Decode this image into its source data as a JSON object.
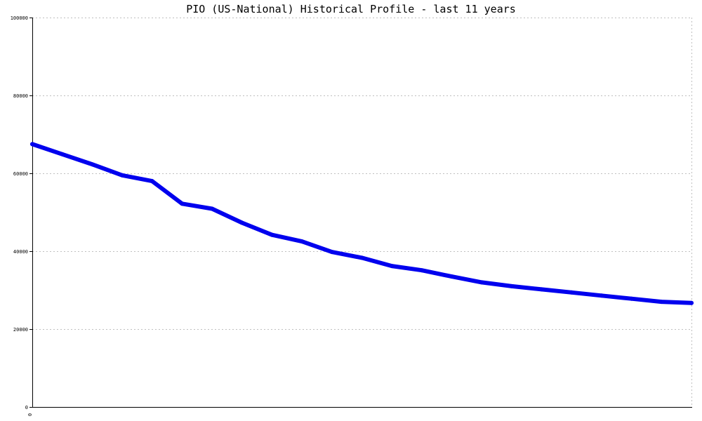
{
  "chart_data": {
    "type": "line",
    "title": "PIO (US-National) Historical Profile - last 11 years",
    "xlabel": "",
    "ylabel": "",
    "ylim": [
      0,
      100000
    ],
    "yticks": [
      0,
      20000,
      40000,
      60000,
      80000,
      100000
    ],
    "ytick_labels": [
      "0",
      "20000",
      "40000",
      "60000",
      "80000",
      "100000"
    ],
    "xtick_labels": [
      "0"
    ],
    "grid": true,
    "colors": {
      "series": "#0000ee",
      "grid": "#bfbfbf",
      "axis": "#000000"
    },
    "series": [
      {
        "x": [
          0,
          1,
          2,
          3,
          4,
          5,
          6,
          7,
          8,
          9,
          10,
          11,
          12,
          13,
          14,
          15,
          16,
          17,
          18,
          19,
          20,
          21,
          22
        ],
        "values": [
          67500,
          64900,
          62300,
          59500,
          58000,
          52200,
          50900,
          47300,
          44200,
          42500,
          39800,
          38300,
          36200,
          35100,
          33500,
          32000,
          31000,
          30200,
          29400,
          28600,
          27800,
          27000,
          26700
        ]
      }
    ]
  }
}
